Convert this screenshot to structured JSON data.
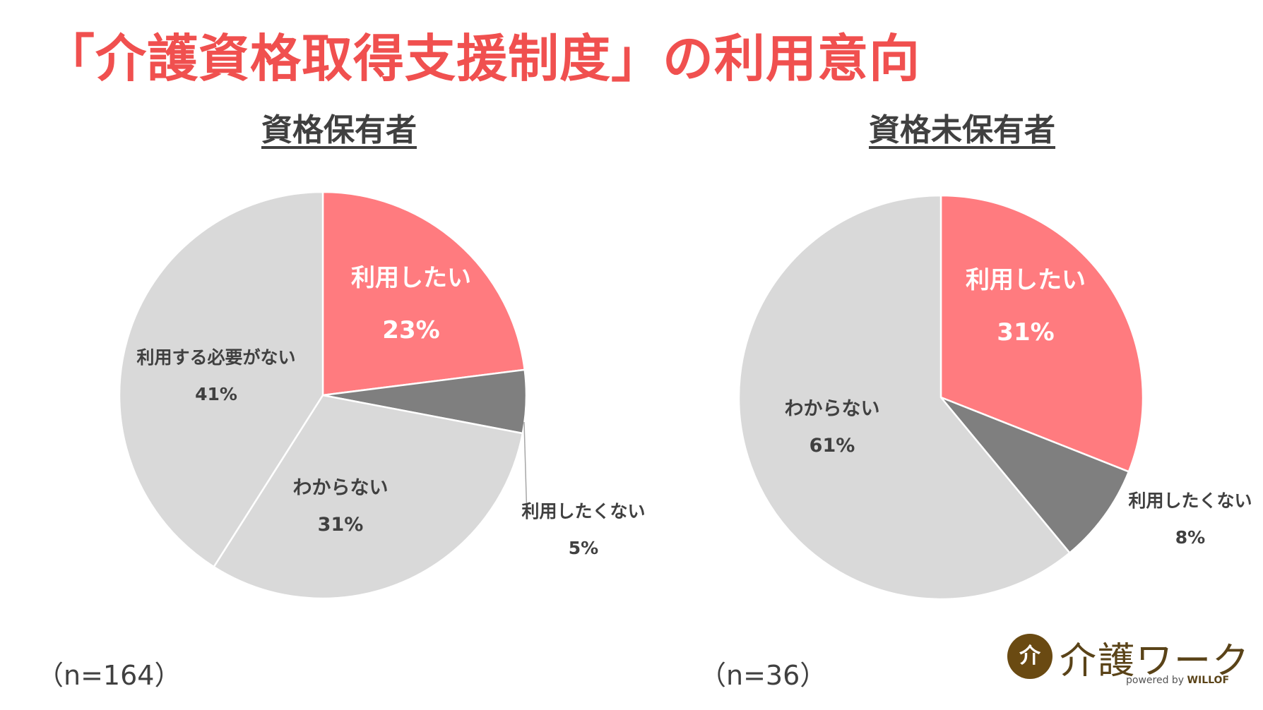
{
  "title": "「介護資格取得支援制度」の利用意向",
  "logo": {
    "mark": "介",
    "name": "介護ワーク",
    "powered_prefix": "powered by",
    "powered_brand": "WILLOF"
  },
  "chart_data": [
    {
      "type": "pie",
      "title": "資格保有者",
      "sample_size": "（n=164）",
      "slices": [
        {
          "label": "利用したい",
          "value": 23,
          "display": "23%",
          "color": "#ff7b7f"
        },
        {
          "label": "利用したくない",
          "value": 5,
          "display": "5%",
          "color": "#7f7f7f"
        },
        {
          "label": "わからない",
          "value": 31,
          "display": "31%",
          "color": "#d9d9d9"
        },
        {
          "label": "利用する必要がない",
          "value": 41,
          "display": "41%",
          "color": "#d9d9d9"
        }
      ]
    },
    {
      "type": "pie",
      "title": "資格未保有者",
      "sample_size": "（n=36）",
      "slices": [
        {
          "label": "利用したい",
          "value": 31,
          "display": "31%",
          "color": "#ff7b7f"
        },
        {
          "label": "利用したくない",
          "value": 8,
          "display": "8%",
          "color": "#7f7f7f"
        },
        {
          "label": "わからない",
          "value": 61,
          "display": "61%",
          "color": "#d9d9d9"
        }
      ]
    }
  ]
}
